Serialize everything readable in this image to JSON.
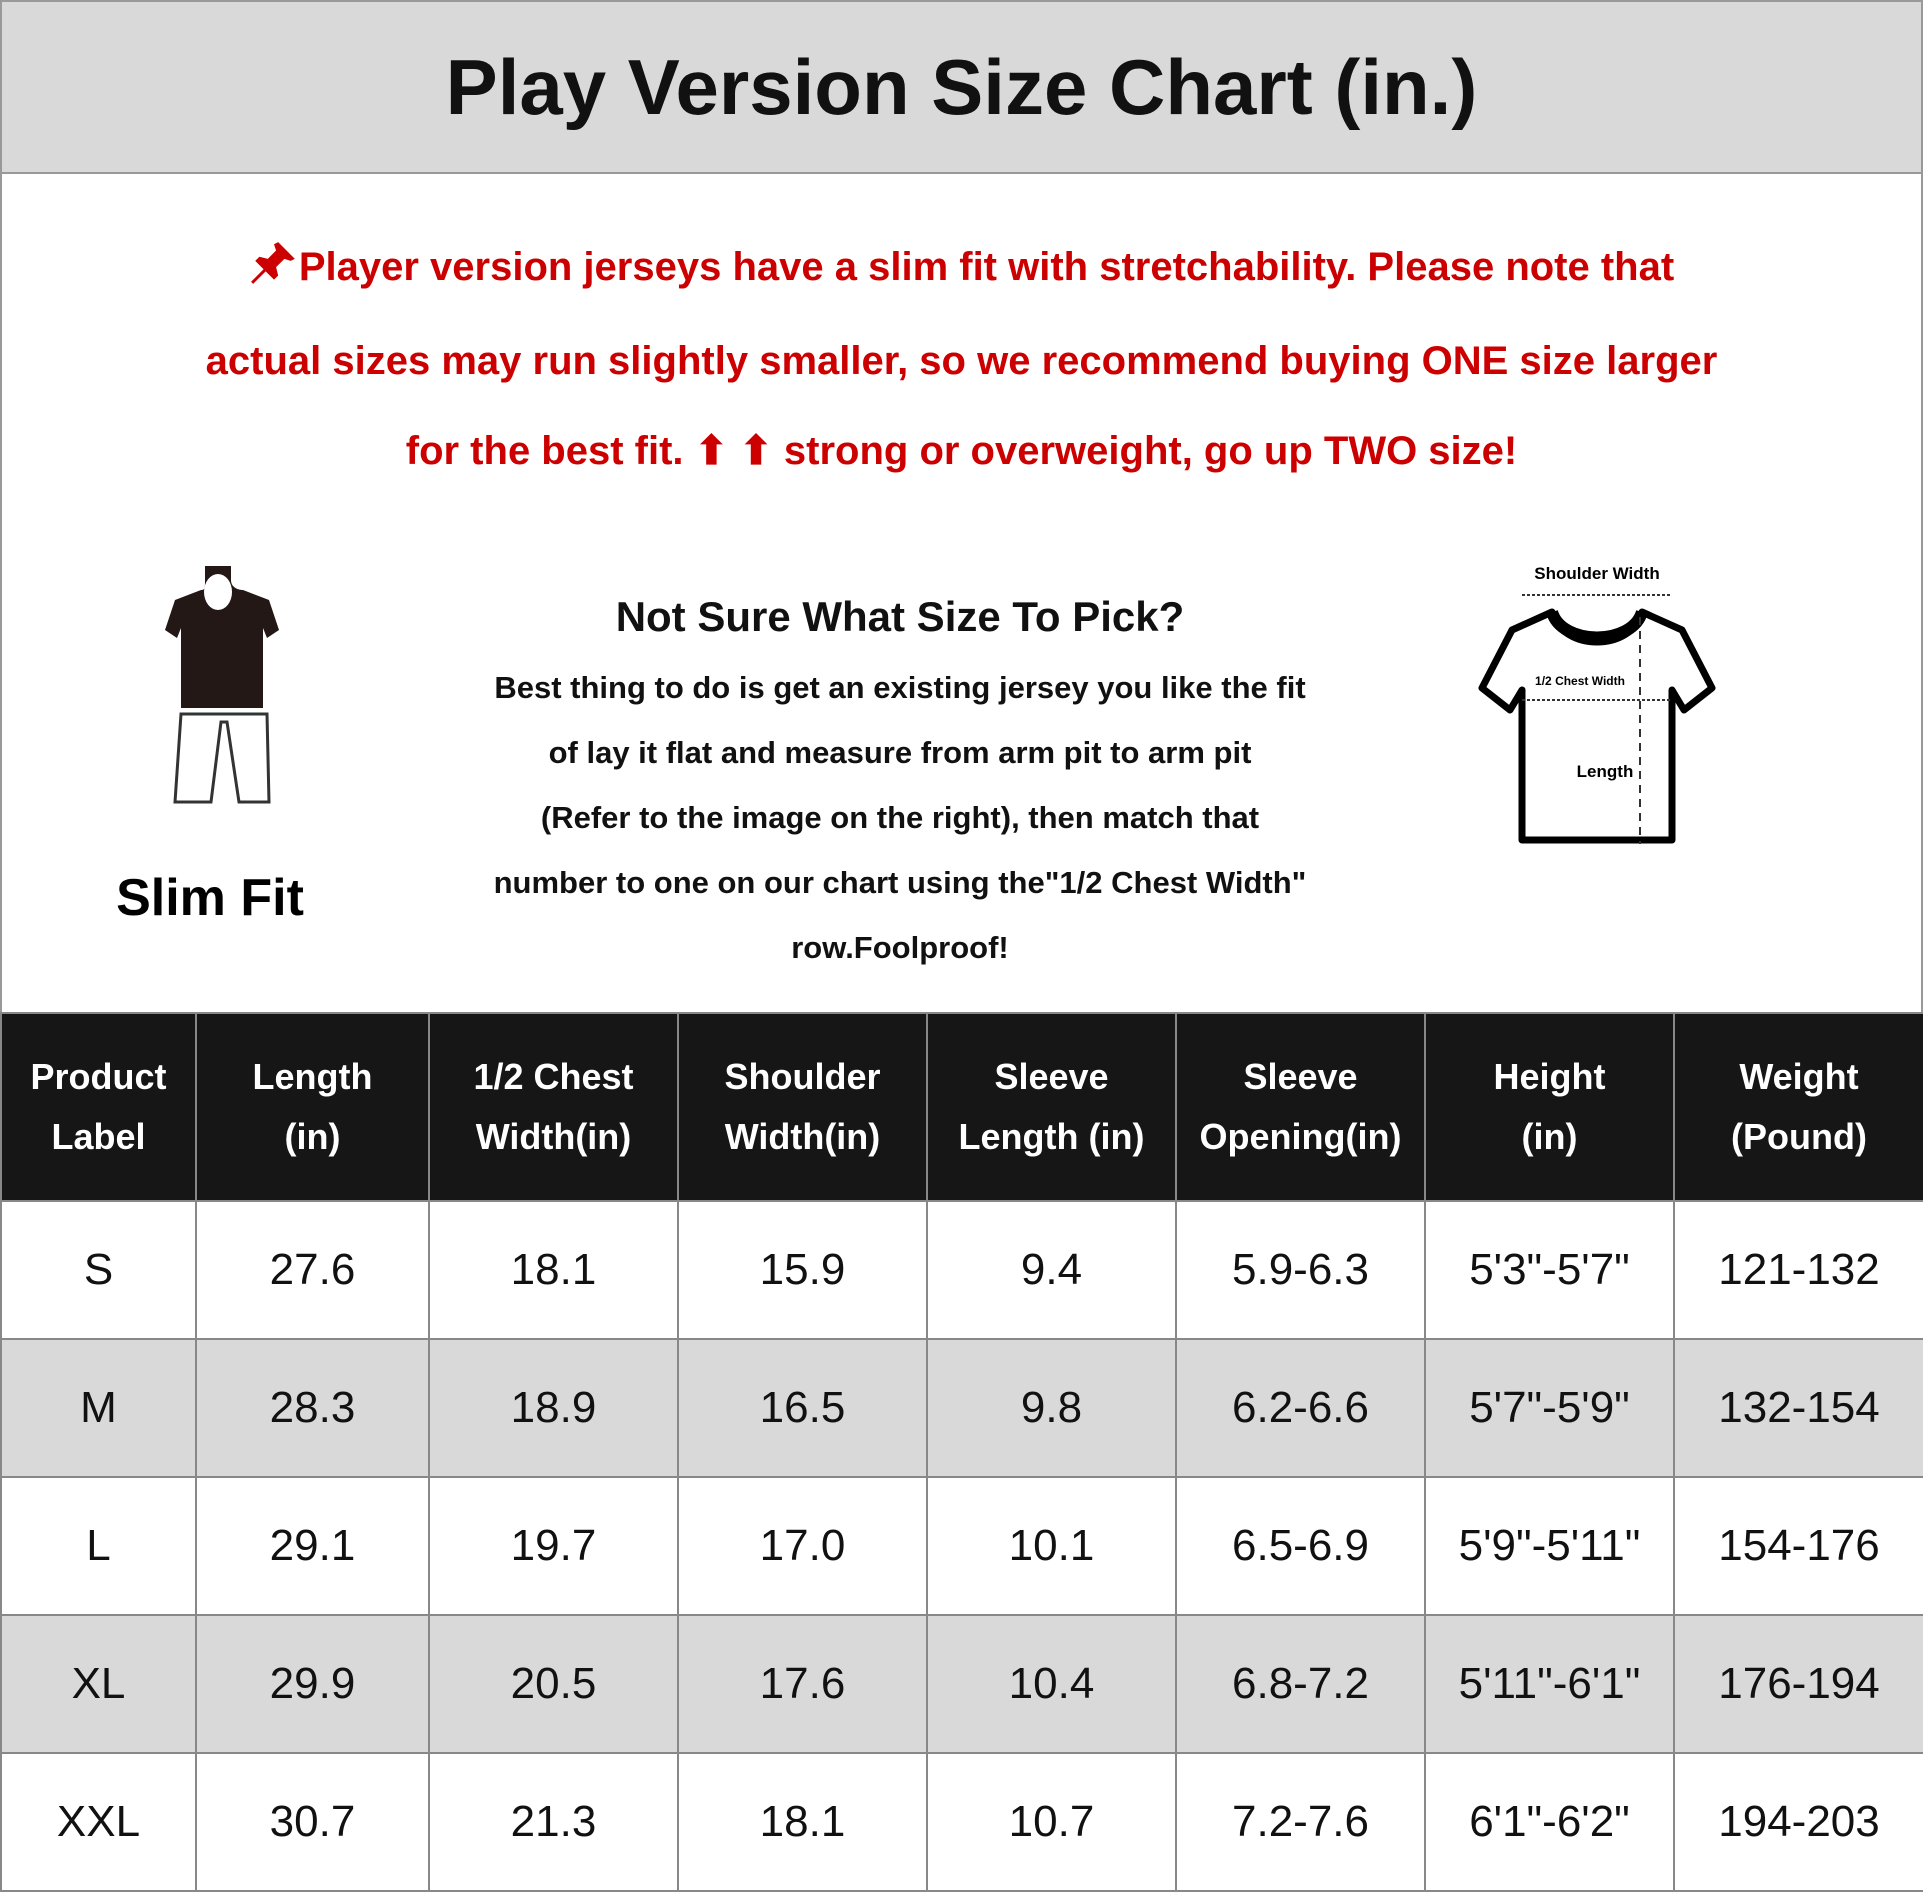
{
  "title": "Play Version Size Chart (in.)",
  "notice": {
    "icon": "pushpin-icon",
    "lines": [
      "Player version jerseys have a slim fit with stretchability. Please note that",
      "actual sizes may run slightly smaller, so we recommend buying ONE size larger",
      "for the best fit. ⬆ ⬆ strong or overweight, go up TWO size!"
    ],
    "color": "#cc0000"
  },
  "fit": {
    "label": "Slim Fit"
  },
  "guide": {
    "heading": "Not Sure What Size To Pick?",
    "lines": [
      "Best thing to do is get an existing jersey you like the fit",
      "of lay it flat and measure from arm pit to arm pit",
      "(Refer to the image on the right), then match that",
      "number to one on our chart using the\"1/2 Chest Width\"",
      "row.Foolproof!"
    ]
  },
  "diagram": {
    "shoulder": "Shoulder Width",
    "chest": "1/2 Chest Width",
    "length": "Length"
  },
  "table": {
    "headers": [
      [
        "Product",
        "Label"
      ],
      [
        "Length",
        "(in)"
      ],
      [
        "1/2 Chest",
        "Width(in)"
      ],
      [
        "Shoulder",
        "Width(in)"
      ],
      [
        "Sleeve",
        "Length (in)"
      ],
      [
        "Sleeve",
        "Opening(in)"
      ],
      [
        "Height",
        "(in)"
      ],
      [
        "Weight",
        "(Pound)"
      ]
    ],
    "rows": [
      [
        "S",
        "27.6",
        "18.1",
        "15.9",
        "9.4",
        "5.9-6.3",
        "5'3\"-5'7\"",
        "121-132"
      ],
      [
        "M",
        "28.3",
        "18.9",
        "16.5",
        "9.8",
        "6.2-6.6",
        "5'7\"-5'9\"",
        "132-154"
      ],
      [
        "L",
        "29.1",
        "19.7",
        "17.0",
        "10.1",
        "6.5-6.9",
        "5'9\"-5'11\"",
        "154-176"
      ],
      [
        "XL",
        "29.9",
        "20.5",
        "17.6",
        "10.4",
        "6.8-7.2",
        "5'11\"-6'1\"",
        "176-194"
      ],
      [
        "XXL",
        "30.7",
        "21.3",
        "18.1",
        "10.7",
        "7.2-7.6",
        "6'1\"-6'2\"",
        "194-203"
      ]
    ]
  }
}
